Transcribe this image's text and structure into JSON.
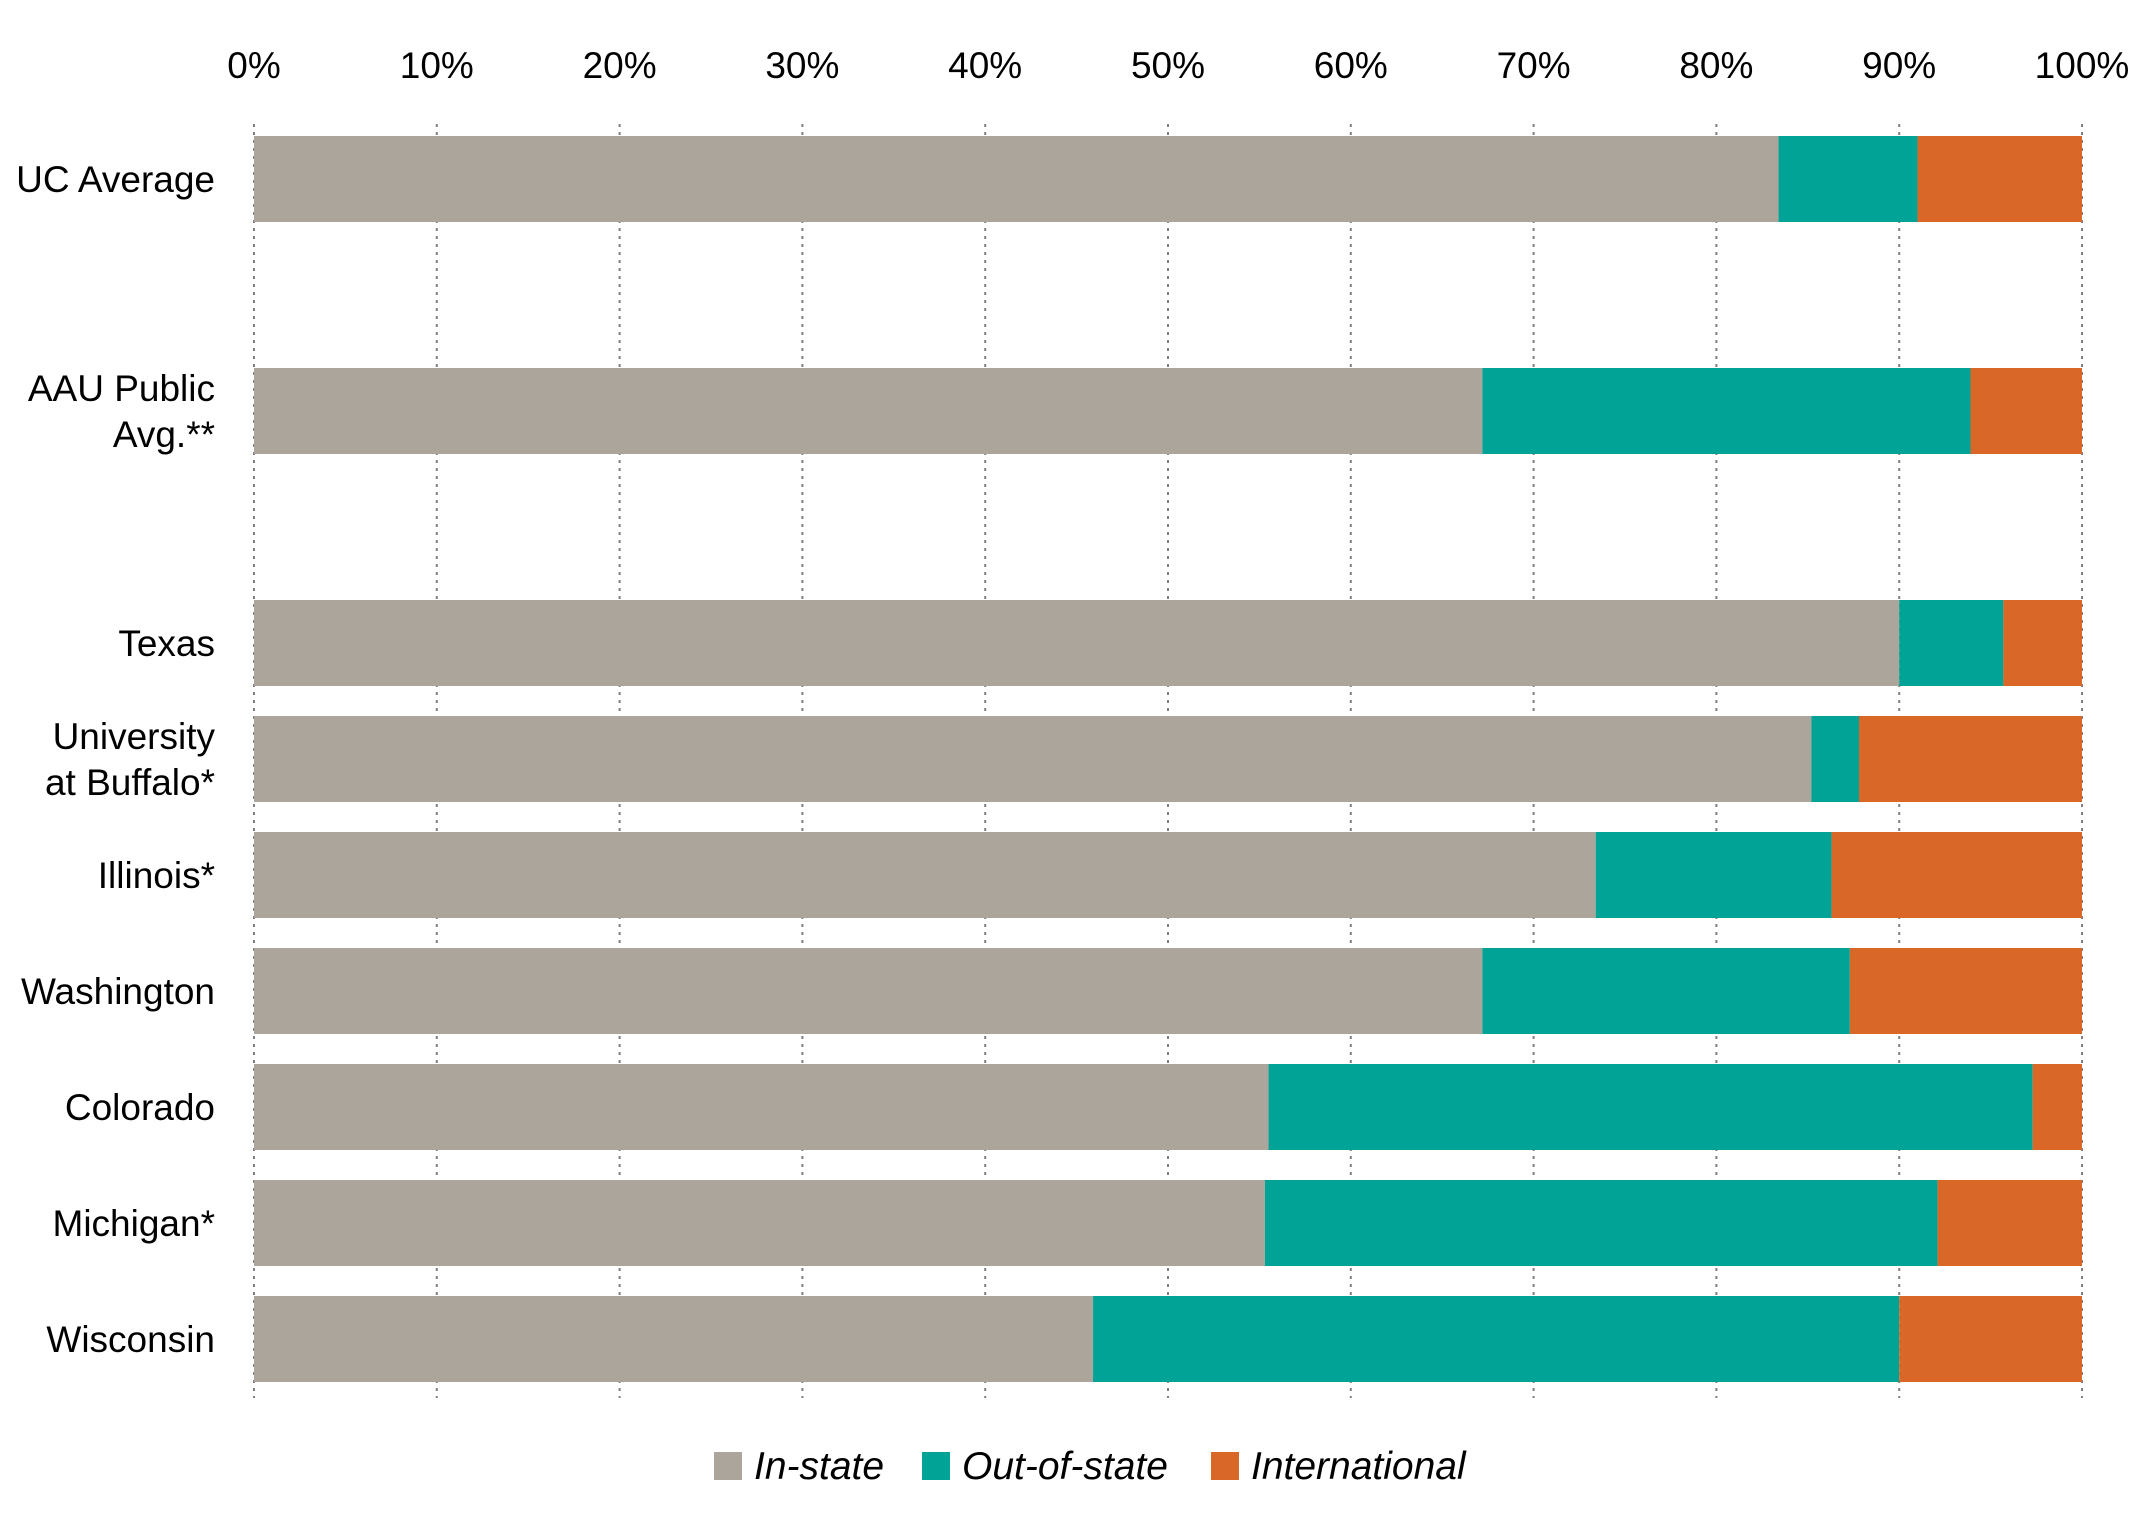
{
  "chart_data": {
    "type": "bar",
    "orientation": "horizontal",
    "stacked": "percent",
    "title": "",
    "xlabel": "",
    "ylabel": "",
    "xlim": [
      0,
      100
    ],
    "x_ticks": [
      "0%",
      "10%",
      "20%",
      "30%",
      "40%",
      "50%",
      "60%",
      "70%",
      "80%",
      "90%",
      "100%"
    ],
    "x_axis_position": "top",
    "grid": "vertical-dotted",
    "legend_position": "bottom-center",
    "categories": [
      {
        "lines": [
          "UC Average"
        ],
        "gap_after": true
      },
      {
        "lines": [
          "AAU Public",
          "Avg.**"
        ],
        "gap_after": true
      },
      {
        "lines": [
          "Texas"
        ],
        "gap_after": false
      },
      {
        "lines": [
          "University",
          "at Buffalo*"
        ],
        "gap_after": false
      },
      {
        "lines": [
          "Illinois*"
        ],
        "gap_after": false
      },
      {
        "lines": [
          "Washington"
        ],
        "gap_after": false
      },
      {
        "lines": [
          "Colorado"
        ],
        "gap_after": false
      },
      {
        "lines": [
          "Michigan*"
        ],
        "gap_after": false
      },
      {
        "lines": [
          "Wisconsin"
        ],
        "gap_after": false
      }
    ],
    "series": [
      {
        "name": "In-state",
        "color": "#aba59b",
        "values": [
          83.4,
          67.2,
          90.0,
          85.2,
          73.4,
          67.2,
          55.5,
          55.3,
          45.9
        ]
      },
      {
        "name": "Out-of-state",
        "color": "#00a396",
        "values": [
          7.6,
          26.7,
          5.7,
          2.6,
          12.9,
          20.1,
          41.8,
          36.8,
          44.1
        ]
      },
      {
        "name": "International",
        "color": "#d96828",
        "values": [
          9.0,
          6.1,
          4.3,
          12.2,
          13.7,
          12.7,
          2.7,
          7.9,
          10.0
        ]
      }
    ]
  }
}
